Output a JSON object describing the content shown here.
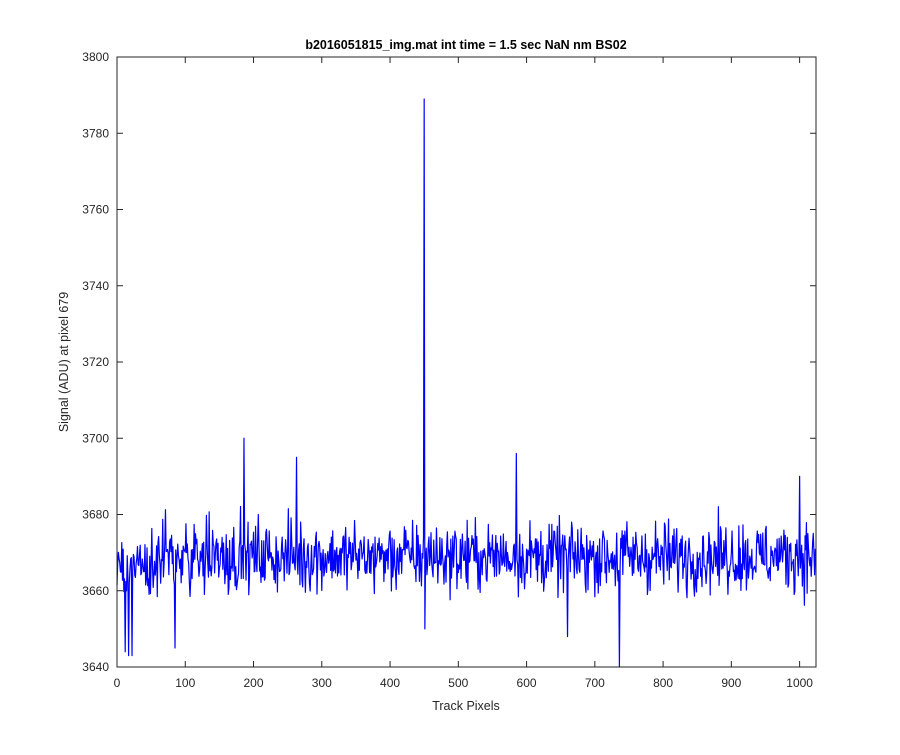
{
  "chart_data": {
    "type": "line",
    "title": "b2016051815_img.mat int time = 1.5 sec  NaN nm BS02",
    "xlabel": "Track Pixels",
    "ylabel": "Signal (ADU) at pixel 679",
    "xlim": [
      0,
      1024
    ],
    "ylim": [
      3640,
      3800
    ],
    "xticks": [
      0,
      100,
      200,
      300,
      400,
      500,
      600,
      700,
      800,
      900,
      1000
    ],
    "yticks": [
      3640,
      3660,
      3680,
      3700,
      3720,
      3740,
      3760,
      3780,
      3800
    ],
    "grid": false,
    "legend": "none",
    "series": [
      {
        "color": "#0000ff",
        "n_points": 1024,
        "baseline_mean": 3669,
        "noise_amplitude": 7,
        "notable_points": [
          {
            "x": 12,
            "y": 3644
          },
          {
            "x": 17,
            "y": 3643
          },
          {
            "x": 22,
            "y": 3643
          },
          {
            "x": 85,
            "y": 3645
          },
          {
            "x": 186,
            "y": 3700
          },
          {
            "x": 263,
            "y": 3695
          },
          {
            "x": 450,
            "y": 3789
          },
          {
            "x": 451,
            "y": 3650
          },
          {
            "x": 585,
            "y": 3696
          },
          {
            "x": 660,
            "y": 3648
          },
          {
            "x": 736,
            "y": 3640
          },
          {
            "x": 1000,
            "y": 3690
          }
        ]
      }
    ]
  }
}
